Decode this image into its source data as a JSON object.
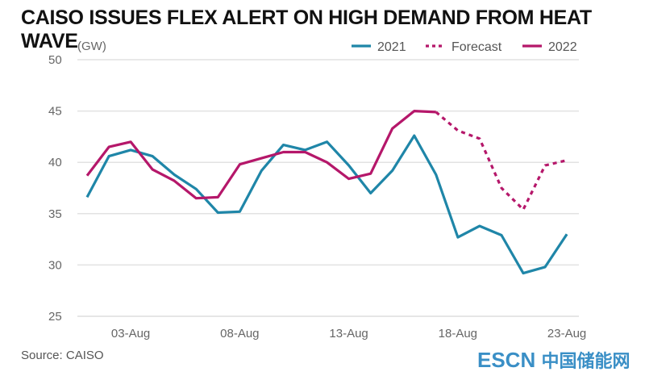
{
  "chart_data": {
    "type": "line",
    "title": "CAISO ISSUES FLEX ALERT ON HIGH DEMAND FROM HEAT WAVE",
    "ylabel": "(GW)",
    "ylim": [
      25,
      50
    ],
    "yticks": [
      "50",
      "45",
      "40",
      "35",
      "30",
      "25"
    ],
    "ytick_values": [
      50,
      45,
      40,
      35,
      30,
      25
    ],
    "xticks": [
      "03-Aug",
      "08-Aug",
      "13-Aug",
      "18-Aug",
      "23-Aug"
    ],
    "x": [
      "01-Aug",
      "02-Aug",
      "03-Aug",
      "04-Aug",
      "05-Aug",
      "06-Aug",
      "07-Aug",
      "08-Aug",
      "09-Aug",
      "10-Aug",
      "11-Aug",
      "12-Aug",
      "13-Aug",
      "14-Aug",
      "15-Aug",
      "16-Aug",
      "17-Aug",
      "18-Aug",
      "19-Aug",
      "20-Aug",
      "21-Aug",
      "22-Aug",
      "23-Aug"
    ],
    "grid": true,
    "legend_position": "top-right",
    "series": [
      {
        "name": "2021",
        "color": "#1f86a8",
        "style": "solid",
        "values": [
          36.6,
          40.6,
          41.2,
          40.6,
          38.8,
          37.4,
          35.1,
          35.2,
          39.2,
          41.7,
          41.2,
          42.0,
          39.7,
          37.0,
          39.2,
          42.6,
          38.8,
          32.7,
          33.8,
          32.9,
          29.2,
          29.8,
          33.0
        ]
      },
      {
        "name": "Forecast",
        "color": "#b5176a",
        "style": "dotted",
        "values": [
          null,
          null,
          null,
          null,
          null,
          null,
          null,
          null,
          null,
          null,
          null,
          null,
          null,
          null,
          null,
          null,
          44.9,
          43.1,
          42.3,
          37.5,
          35.4,
          39.7,
          40.2
        ]
      },
      {
        "name": "2022",
        "color": "#b5176a",
        "style": "solid",
        "values": [
          38.7,
          41.5,
          42.0,
          39.3,
          38.2,
          36.5,
          36.6,
          39.8,
          40.4,
          41.0,
          41.0,
          40.0,
          38.4,
          38.9,
          43.3,
          45.0,
          44.9,
          null,
          null,
          null,
          null,
          null,
          null
        ]
      }
    ],
    "source": "Source: CAISO"
  },
  "watermark": {
    "latin": "ESCN",
    "cjk": "中国储能网"
  }
}
